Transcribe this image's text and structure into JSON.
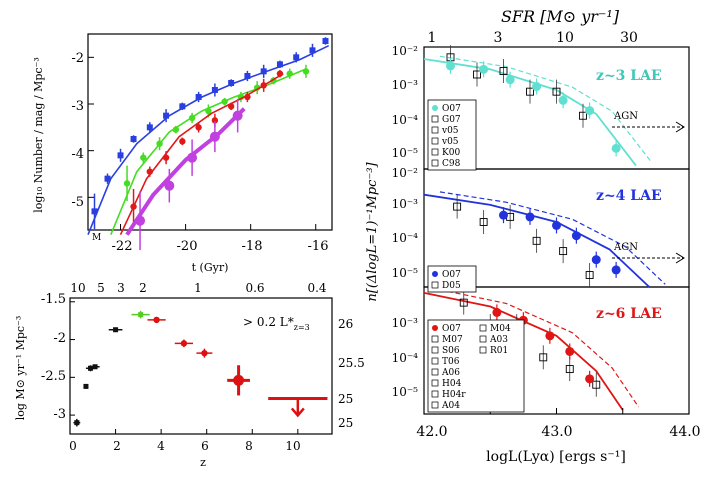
{
  "chart_data": [
    {
      "id": "lf",
      "type": "line",
      "ylabel": "log₁₀ Number / mag / Mpc⁻³",
      "xlabel_top": "M",
      "xlabel_bottom": "t (Gyr)",
      "x_ticks": [
        "-22",
        "-20",
        "-18",
        "-16"
      ],
      "y_ticks": [
        "-2",
        "-3",
        "-4",
        "-5"
      ],
      "xlim": [
        -23,
        -15.5
      ],
      "ylim": [
        -5.7,
        -1.5
      ],
      "series": [
        {
          "name": "blue",
          "color": "#2a3fe0",
          "x": [
            -22.8,
            -22.4,
            -22.0,
            -21.6,
            -21.1,
            -20.6,
            -20.1,
            -19.6,
            -19.1,
            -18.6,
            -18.1,
            -17.6,
            -17.1,
            -16.6,
            -16.1,
            -15.7
          ],
          "y": [
            -5.3,
            -4.6,
            -4.1,
            -3.75,
            -3.5,
            -3.25,
            -3.05,
            -2.85,
            -2.7,
            -2.55,
            -2.4,
            -2.3,
            -2.15,
            -2.0,
            -1.85,
            -1.65
          ],
          "curve": [
            [
              -23.0,
              -5.8
            ],
            [
              -22.3,
              -4.6
            ],
            [
              -21.5,
              -3.85
            ],
            [
              -20.5,
              -3.25
            ],
            [
              -19.5,
              -2.85
            ],
            [
              -18.5,
              -2.55
            ],
            [
              -17.5,
              -2.3
            ],
            [
              -16.5,
              -2.05
            ],
            [
              -15.6,
              -1.75
            ]
          ]
        },
        {
          "name": "green",
          "color": "#44dd22",
          "x": [
            -21.8,
            -21.3,
            -20.8,
            -20.3,
            -19.8,
            -19.3,
            -18.8,
            -18.3,
            -17.8,
            -17.3,
            -16.8,
            -16.3
          ],
          "y": [
            -4.7,
            -4.15,
            -3.85,
            -3.55,
            -3.3,
            -3.15,
            -2.95,
            -2.85,
            -2.65,
            -2.5,
            -2.35,
            -2.3
          ],
          "curve": [
            [
              -22.3,
              -5.8
            ],
            [
              -21.5,
              -4.45
            ],
            [
              -20.5,
              -3.6
            ],
            [
              -19.5,
              -3.15
            ],
            [
              -18.5,
              -2.85
            ],
            [
              -17.5,
              -2.6
            ],
            [
              -16.3,
              -2.25
            ]
          ]
        },
        {
          "name": "red",
          "color": "#e01a1a",
          "x": [
            -21.6,
            -21.1,
            -20.6,
            -20.1,
            -19.6,
            -19.1,
            -18.6,
            -18.1,
            -17.6,
            -17.1
          ],
          "y": [
            -5.2,
            -4.45,
            -4.15,
            -3.8,
            -3.5,
            -3.35,
            -3.05,
            -2.85,
            -2.6,
            -2.35
          ],
          "curve": [
            [
              -22.0,
              -5.8
            ],
            [
              -21.2,
              -4.6
            ],
            [
              -20.2,
              -3.7
            ],
            [
              -19.2,
              -3.2
            ],
            [
              -18.2,
              -2.85
            ],
            [
              -17.0,
              -2.35
            ]
          ]
        },
        {
          "name": "magenta",
          "color": "#c040e0",
          "x": [
            -21.4,
            -20.5,
            -19.8,
            -19.1,
            -18.4
          ],
          "y": [
            -5.5,
            -4.75,
            -4.15,
            -3.7,
            -3.25
          ],
          "curve": [
            [
              -21.8,
              -5.8
            ],
            [
              -21.0,
              -4.95
            ],
            [
              -20.0,
              -4.2
            ],
            [
              -19.0,
              -3.65
            ],
            [
              -18.2,
              -3.1
            ]
          ]
        }
      ]
    },
    {
      "id": "sfrd",
      "type": "scatter",
      "ylabel": "log M⊙ yr⁻¹ Mpc⁻³",
      "xlabel": "z",
      "x_ticks": [
        "0",
        "2",
        "4",
        "6",
        "8",
        "10"
      ],
      "y_ticks": [
        "-1.5",
        "-2",
        "-2.5",
        "-3"
      ],
      "top_ticks": [
        "10",
        "5",
        "3",
        "2",
        "1",
        "0.6",
        "0.4"
      ],
      "right_ticks": [
        "26",
        "25.5",
        "25",
        "25"
      ],
      "xlim": [
        0,
        11.5
      ],
      "ylim": [
        -3.25,
        -1.45
      ],
      "annotation": "> 0.2 L*",
      "annotation_sub": "z=3",
      "points": [
        {
          "z": 0.3,
          "y": -3.1,
          "color": "#111111",
          "xerr": 0.15,
          "yerr": 0.05
        },
        {
          "z": 0.7,
          "y": -2.62,
          "color": "#111111",
          "xerr": 0.1,
          "yerr": 0.03
        },
        {
          "z": 0.9,
          "y": -2.38,
          "color": "#111111",
          "xerr": 0.2,
          "yerr": 0.04
        },
        {
          "z": 1.1,
          "y": -2.36,
          "color": "#111111",
          "xerr": 0.2,
          "yerr": 0.03
        },
        {
          "z": 2.0,
          "y": -1.87,
          "color": "#111111",
          "xerr": 0.3,
          "yerr": 0.03
        },
        {
          "z": 3.1,
          "y": -1.67,
          "color": "#55cc22",
          "xerr": 0.4,
          "yerr": 0.05
        },
        {
          "z": 3.8,
          "y": -1.74,
          "color": "#dd1111",
          "xerr": 0.4,
          "yerr": 0.04
        },
        {
          "z": 5.0,
          "y": -2.05,
          "color": "#dd1111",
          "xerr": 0.4,
          "yerr": 0.05
        },
        {
          "z": 5.9,
          "y": -2.18,
          "color": "#dd1111",
          "xerr": 0.35,
          "yerr": 0.06
        },
        {
          "z": 7.4,
          "y": -2.54,
          "color": "#dd1111",
          "xerr": 0.5,
          "yerr": 0.2
        },
        {
          "z": 10.0,
          "y": -2.78,
          "color": "#dd1111",
          "xerr": 1.3,
          "yerr": 0,
          "upper_limit": true
        }
      ]
    },
    {
      "id": "lae_lf",
      "type": "scatter",
      "title_top": "SFR [M⊙ yr⁻¹]",
      "top_ticks": [
        "1",
        "3",
        "10",
        "30"
      ],
      "xlabel": "logL(Lyα) [ergs s⁻¹]",
      "ylabel": "n[(ΔlogL=1)⁻¹Mpc⁻³]",
      "x_ticks": [
        "42.0",
        "43.0",
        "44.0"
      ],
      "xlim": [
        42.0,
        44.0
      ],
      "panels": [
        {
          "label": "z~3 LAE",
          "color": "#5fe0d0",
          "y_ticks": [
            "10⁻²",
            "10⁻³",
            "10⁻⁴",
            "10⁻⁵"
          ],
          "agn_label": "AGN",
          "legend": [
            "O07",
            "G07",
            "v05",
            "v05",
            "K00",
            "C98"
          ],
          "logL": [
            42.2,
            42.45,
            42.65,
            42.85,
            43.05,
            43.25,
            43.45
          ],
          "logn": [
            -2.5,
            -2.6,
            -2.9,
            -3.1,
            -3.5,
            -3.8,
            -4.9
          ],
          "curve": [
            [
              42.0,
              -2.3
            ],
            [
              42.5,
              -2.6
            ],
            [
              43.0,
              -3.2
            ],
            [
              43.3,
              -3.9
            ],
            [
              43.6,
              -5.4
            ]
          ]
        },
        {
          "label": "z~4 LAE",
          "color": "#2233dd",
          "y_ticks": [
            "10⁻²",
            "10⁻³",
            "10⁻⁴",
            "10⁻⁵"
          ],
          "agn_label": "AGN",
          "legend": [
            "O07",
            "D05"
          ],
          "logL": [
            42.6,
            42.8,
            43.0,
            43.15,
            43.3,
            43.45
          ],
          "logn": [
            -3.3,
            -3.35,
            -3.6,
            -3.9,
            -4.6,
            -4.9
          ],
          "curve": [
            [
              42.0,
              -2.7
            ],
            [
              42.5,
              -3.0
            ],
            [
              43.0,
              -3.5
            ],
            [
              43.4,
              -4.3
            ],
            [
              43.7,
              -5.4
            ]
          ]
        },
        {
          "label": "z~6 LAE",
          "color": "#e01515",
          "y_ticks": [
            "10⁻³",
            "10⁻⁴",
            "10⁻⁵"
          ],
          "legend": [
            "O07",
            "M07",
            "S06",
            "T06",
            "A06",
            "H04",
            "H04r",
            "A04",
            "M04",
            "A03",
            "R01"
          ],
          "logL": [
            42.55,
            42.75,
            42.95,
            43.1,
            43.25
          ],
          "logn": [
            -3.1,
            -3.3,
            -3.7,
            -4.1,
            -4.8
          ],
          "curve": [
            [
              42.0,
              -2.6
            ],
            [
              42.5,
              -2.95
            ],
            [
              43.0,
              -3.7
            ],
            [
              43.3,
              -4.6
            ],
            [
              43.5,
              -5.6
            ]
          ]
        }
      ]
    }
  ]
}
